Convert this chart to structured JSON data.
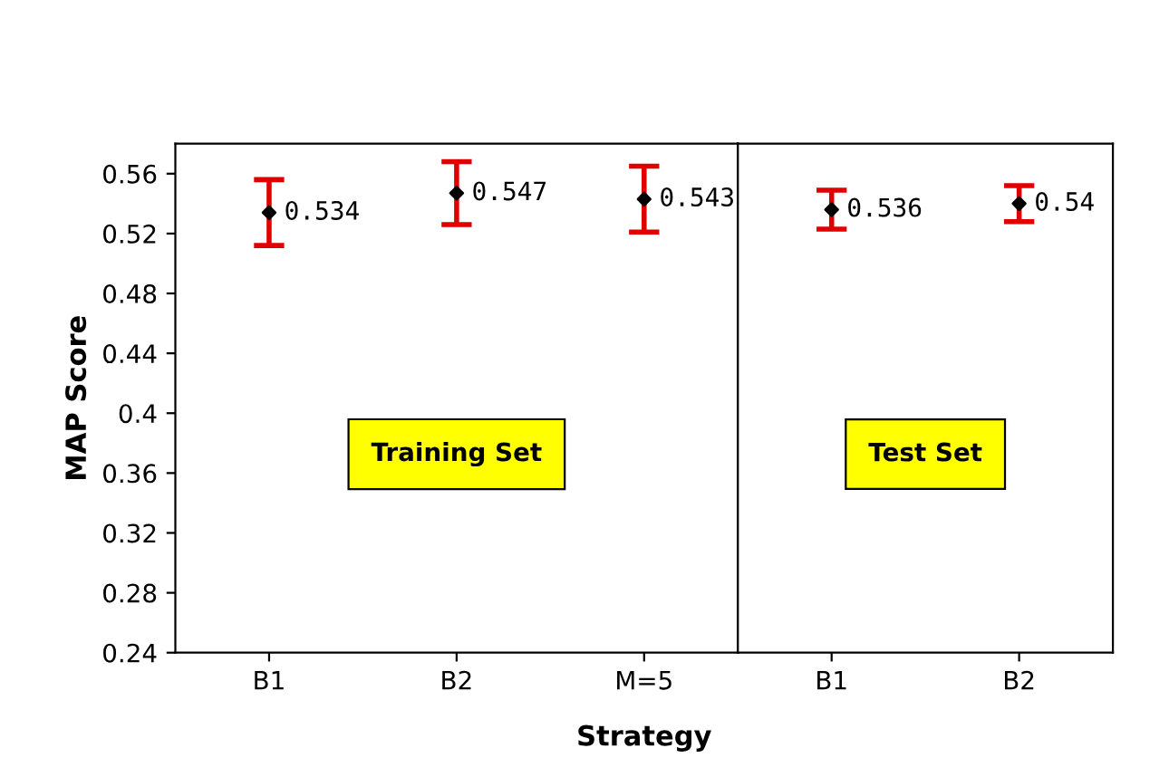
{
  "chart_data": [
    {
      "type": "scatter",
      "xlabel": "Strategy",
      "ylabel": "MAP Score",
      "categories": [
        "B1",
        "B2",
        "M=5"
      ],
      "series": [
        {
          "color": "#000000",
          "values": [
            0.534,
            0.547,
            0.543
          ],
          "errors": [
            0.022,
            0.021,
            0.022
          ]
        }
      ],
      "data_labels": true,
      "marker": "diamond",
      "grid": false,
      "legend": false,
      "ylim": [
        0.24,
        0.58
      ],
      "yticks": [
        0.24,
        0.28,
        0.32,
        0.36,
        0.4,
        0.44,
        0.48,
        0.52,
        0.56
      ],
      "annotations": [
        "Training Set"
      ]
    },
    {
      "type": "scatter",
      "categories": [
        "B1",
        "B2"
      ],
      "series": [
        {
          "color": "#000000",
          "values": [
            0.536,
            0.54
          ],
          "errors": [
            0.013,
            0.012
          ]
        }
      ],
      "data_labels": true,
      "marker": "diamond",
      "grid": false,
      "legend": false,
      "tick_labels": "x",
      "ylim": [
        0.24,
        0.58
      ],
      "yticks": [
        0.24,
        0.28,
        0.32,
        0.36,
        0.4,
        0.44,
        0.48,
        0.52,
        0.56
      ],
      "annotations": [
        "Test Set"
      ]
    }
  ]
}
